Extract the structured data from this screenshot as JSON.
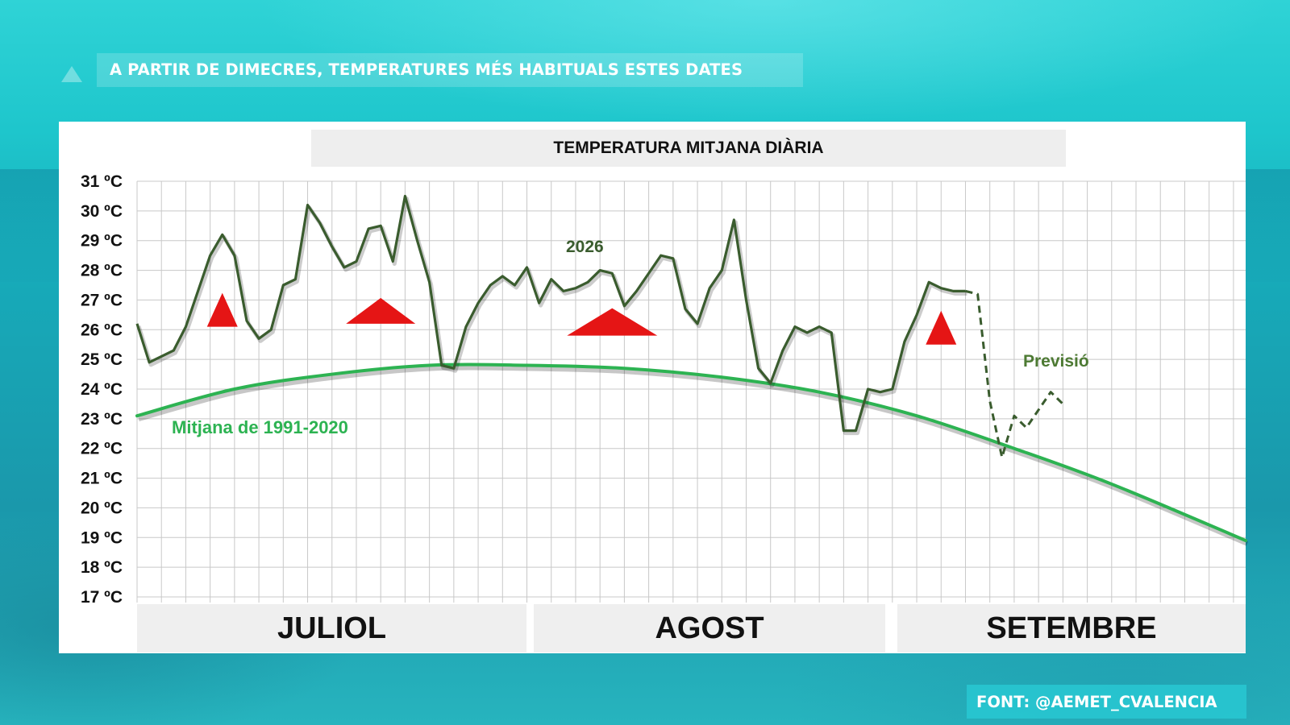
{
  "headline": "A PARTIR DE DIMECRES, TEMPERATURES MÉS HABITUALS ESTES DATES",
  "source": "FONT: @AEMET_CVALENCIA",
  "months": [
    "JULIOL",
    "AGOST",
    "SETEMBRE"
  ],
  "colors": {
    "observed": "#3a5c2e",
    "normal": "#2db352",
    "arrow": "#e51515",
    "forecast": "#3a5c2e",
    "grid": "#c8c8c8"
  },
  "chart_data": {
    "type": "line",
    "title": "TEMPERATURA MITJANA DIÀRIA",
    "ylabel": "",
    "xlabel": "",
    "unit": "ºC",
    "ylim": [
      17,
      31
    ],
    "yticks": [
      17,
      18,
      19,
      20,
      21,
      22,
      23,
      24,
      25,
      26,
      27,
      28,
      29,
      30,
      31
    ],
    "ytick_labels": [
      "17 ºC",
      "18 ºC",
      "19 ºC",
      "20 ºC",
      "21 ºC",
      "22 ºC",
      "23 ºC",
      "24 ºC",
      "25 ºC",
      "26 ºC",
      "27 ºC",
      "28 ºC",
      "29 ºC",
      "30 ºC",
      "31 ºC"
    ],
    "x_range": [
      "2026-07-01",
      "2026-09-30"
    ],
    "grid": true,
    "series": [
      {
        "name": "2026",
        "style": "solid",
        "dates": [
          "2026-07-01",
          "2026-07-02",
          "2026-07-03",
          "2026-07-04",
          "2026-07-05",
          "2026-07-06",
          "2026-07-07",
          "2026-07-08",
          "2026-07-09",
          "2026-07-10",
          "2026-07-11",
          "2026-07-12",
          "2026-07-13",
          "2026-07-14",
          "2026-07-15",
          "2026-07-16",
          "2026-07-17",
          "2026-07-18",
          "2026-07-19",
          "2026-07-20",
          "2026-07-21",
          "2026-07-22",
          "2026-07-23",
          "2026-07-24",
          "2026-07-25",
          "2026-07-26",
          "2026-07-27",
          "2026-07-28",
          "2026-07-29",
          "2026-07-30",
          "2026-07-31",
          "2026-08-01",
          "2026-08-02",
          "2026-08-03",
          "2026-08-04",
          "2026-08-05",
          "2026-08-06",
          "2026-08-07",
          "2026-08-08",
          "2026-08-09",
          "2026-08-10",
          "2026-08-11",
          "2026-08-12",
          "2026-08-13",
          "2026-08-14",
          "2026-08-15",
          "2026-08-16",
          "2026-08-17",
          "2026-08-18",
          "2026-08-19",
          "2026-08-20",
          "2026-08-21",
          "2026-08-22",
          "2026-08-23",
          "2026-08-24",
          "2026-08-25",
          "2026-08-26",
          "2026-08-27",
          "2026-08-28",
          "2026-08-29",
          "2026-08-30",
          "2026-08-31",
          "2026-09-01",
          "2026-09-02",
          "2026-09-03",
          "2026-09-04",
          "2026-09-05",
          "2026-09-06",
          "2026-09-07"
        ],
        "values": [
          26.2,
          24.9,
          25.1,
          25.3,
          26.1,
          27.3,
          28.5,
          29.2,
          28.5,
          26.3,
          25.7,
          26.0,
          27.5,
          27.7,
          30.2,
          29.6,
          28.8,
          28.1,
          28.3,
          29.4,
          29.5,
          28.3,
          30.5,
          29.0,
          27.6,
          24.8,
          24.7,
          26.1,
          26.9,
          27.5,
          27.8,
          27.5,
          28.1,
          26.9,
          27.7,
          27.3,
          27.4,
          27.6,
          28.0,
          27.9,
          26.8,
          27.3,
          27.9,
          28.5,
          28.4,
          26.7,
          26.2,
          27.4,
          28.0,
          29.7,
          27.0,
          24.7,
          24.2,
          25.3,
          26.1,
          25.9,
          26.1,
          25.9,
          22.6,
          22.6,
          24.0,
          23.9,
          24.0,
          25.6,
          26.5,
          27.6,
          27.4,
          27.3,
          27.3
        ]
      },
      {
        "name": "Previsió",
        "style": "dashed",
        "dates": [
          "2026-09-07",
          "2026-09-08",
          "2026-09-09",
          "2026-09-10",
          "2026-09-11",
          "2026-09-12",
          "2026-09-13",
          "2026-09-14",
          "2026-09-15"
        ],
        "values": [
          27.3,
          27.2,
          23.6,
          21.7,
          23.1,
          22.7,
          23.3,
          23.9,
          23.5
        ]
      },
      {
        "name": "Mitjana de 1991-2020",
        "style": "smooth",
        "dates": [
          "2026-07-01",
          "2026-07-09",
          "2026-07-17",
          "2026-07-25",
          "2026-08-02",
          "2026-08-10",
          "2026-08-18",
          "2026-08-26",
          "2026-09-03",
          "2026-09-11",
          "2026-09-19",
          "2026-09-30"
        ],
        "values": [
          23.1,
          24.0,
          24.5,
          24.8,
          24.8,
          24.7,
          24.4,
          23.9,
          23.1,
          22.0,
          20.8,
          18.9
        ]
      }
    ],
    "annotations": [
      {
        "type": "up-arrow",
        "date": "2026-07-08",
        "value": 26.1,
        "size": "small"
      },
      {
        "type": "up-arrow",
        "date": "2026-07-21",
        "value": 26.2,
        "size": "wide"
      },
      {
        "type": "up-arrow",
        "date": "2026-08-09",
        "value": 25.8,
        "size": "large"
      },
      {
        "type": "up-arrow",
        "date": "2026-09-05",
        "value": 25.5,
        "size": "small"
      }
    ]
  }
}
